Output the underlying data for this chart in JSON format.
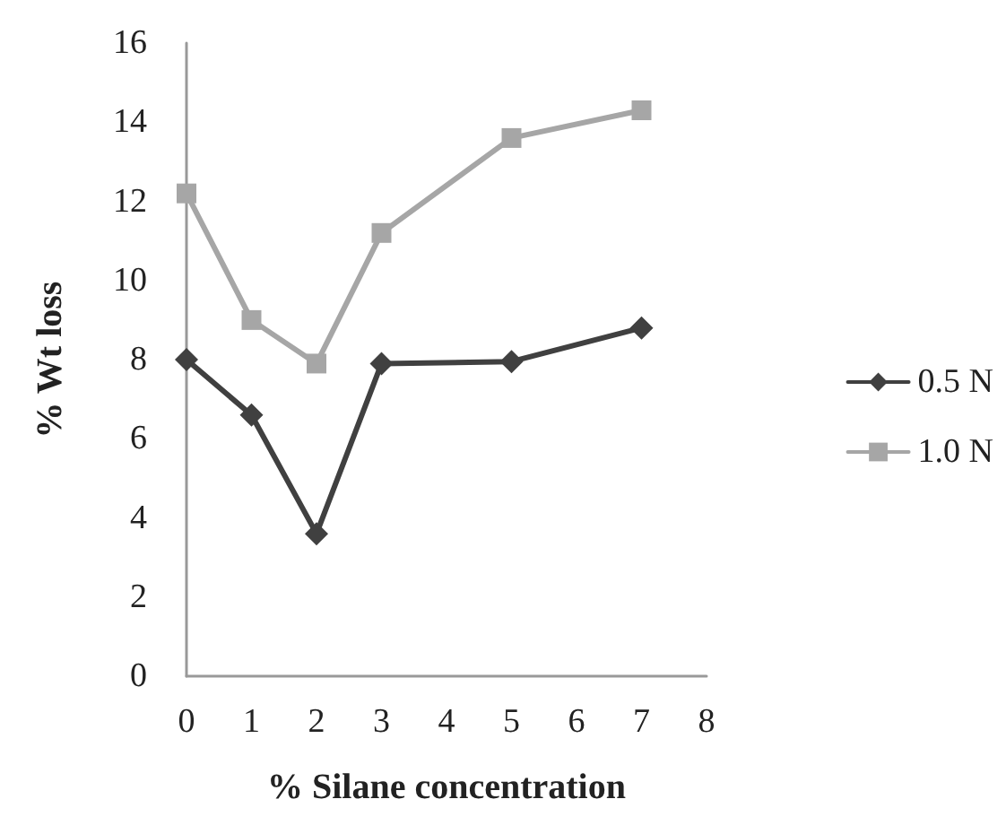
{
  "chart_data": {
    "type": "line",
    "xlabel": "% Silane concentration",
    "ylabel": "% Wt loss",
    "x": [
      0,
      1,
      2,
      3,
      5,
      7
    ],
    "series": [
      {
        "name": "0.5 N",
        "color": "#404040",
        "marker": "diamond",
        "values": [
          8.0,
          6.6,
          3.6,
          7.9,
          7.95,
          8.8
        ]
      },
      {
        "name": "1.0 N",
        "color": "#a6a6a6",
        "marker": "square",
        "values": [
          12.2,
          9.0,
          7.9,
          11.2,
          13.6,
          14.3
        ]
      }
    ],
    "xlim": [
      0,
      8
    ],
    "xticks": [
      0,
      1,
      2,
      3,
      4,
      5,
      6,
      7,
      8
    ],
    "ylim": [
      0,
      16
    ],
    "yticks": [
      0,
      2,
      4,
      6,
      8,
      10,
      12,
      14,
      16
    ],
    "grid": false,
    "legend": "right"
  }
}
